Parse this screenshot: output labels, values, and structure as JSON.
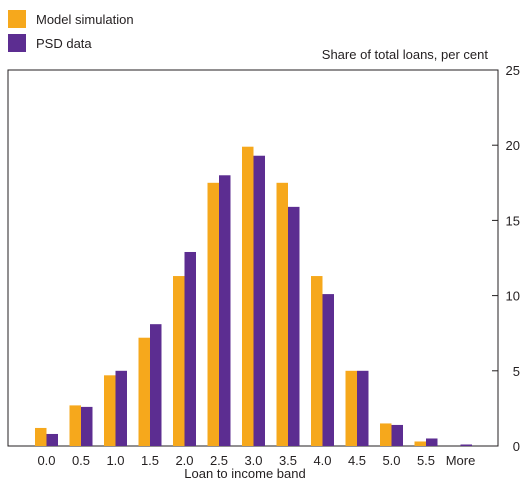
{
  "chart_data": {
    "type": "bar",
    "categories": [
      "0.0",
      "0.5",
      "1.0",
      "1.5",
      "2.0",
      "2.5",
      "3.0",
      "3.5",
      "4.0",
      "4.5",
      "5.0",
      "5.5",
      "More"
    ],
    "series": [
      {
        "name": "Model simulation",
        "color": "#f6a81c",
        "values": [
          1.2,
          2.7,
          4.7,
          7.2,
          11.3,
          17.5,
          19.9,
          17.5,
          11.3,
          5.0,
          1.5,
          0.3,
          0.0
        ]
      },
      {
        "name": "PSD data",
        "color": "#5c2d91",
        "values": [
          0.8,
          2.6,
          5.0,
          8.1,
          12.9,
          18.0,
          19.3,
          15.9,
          10.1,
          5.0,
          1.4,
          0.5,
          0.1
        ]
      }
    ],
    "ylabel": "Share of total loans, per cent",
    "xlabel": "Loan to income band",
    "ylim": [
      0,
      25
    ],
    "yticks": [
      0,
      5,
      10,
      15,
      20,
      25
    ],
    "grid": false,
    "legend_position": "top-left"
  }
}
